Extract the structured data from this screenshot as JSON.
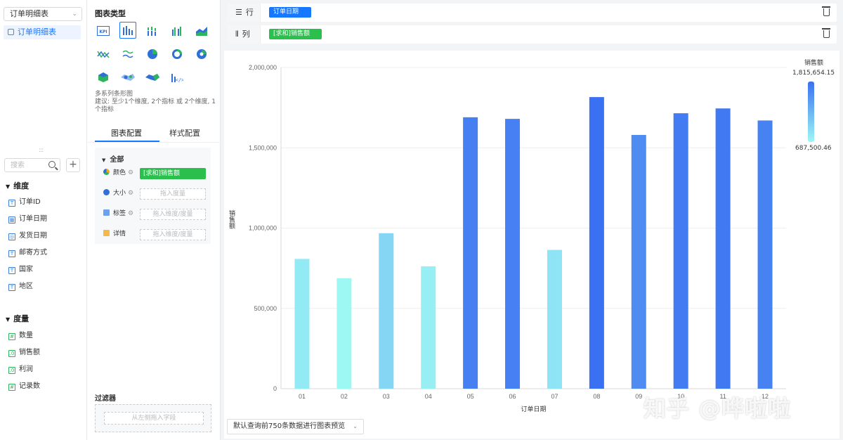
{
  "left": {
    "datasource": "订单明细表",
    "table_item": "订单明细表",
    "search_placeholder": "搜索",
    "dimensions_title": "维度",
    "dimensions": [
      "订单ID",
      "订单日期",
      "发货日期",
      "邮寄方式",
      "国家",
      "地区"
    ],
    "measures_title": "度量",
    "measures": [
      "数量",
      "销售额",
      "利润",
      "记录数"
    ]
  },
  "mid": {
    "title": "图表类型",
    "desc_line1": "多系列条形图",
    "desc_line2": "建议: 至少1个维度, 2个指标 或 2个维度, 1个指标",
    "tab_config": "图表配置",
    "tab_style": "样式配置",
    "all_label": "全部",
    "color_label": "颜色",
    "color_field": "[求和]销售额",
    "size_label": "大小",
    "size_slot": "拖入度量",
    "tag_label": "标签",
    "tag_slot": "拖入维度/度量",
    "detail_label": "详情",
    "detail_slot": "拖入维度/度量",
    "filter_title": "过滤器",
    "filter_slot": "从左侧拖入字段"
  },
  "shelves": {
    "row_label": "行",
    "row_field": "订单日期",
    "col_label": "列",
    "col_field": "[求和]销售额"
  },
  "preview_text": "默认查询前750条数据进行图表预览",
  "watermark": "知乎 @哗啦啦",
  "colors": {
    "accent": "#1677ff",
    "green": "#2bbf4e",
    "bar_high": "#3a70f2",
    "bar_low": "#9df8f4"
  },
  "chart_data": {
    "type": "bar",
    "categories": [
      "01",
      "02",
      "03",
      "04",
      "05",
      "06",
      "07",
      "08",
      "09",
      "10",
      "11",
      "12"
    ],
    "values": [
      808000,
      688000,
      968000,
      762000,
      1690000,
      1680000,
      864000,
      1815654,
      1580000,
      1715000,
      1745000,
      1670000
    ],
    "xlabel": "订单日期",
    "ylabel": "销售额",
    "ylim": [
      0,
      2000000
    ],
    "yticks": [
      "0",
      "500,000",
      "1,000,000",
      "1,500,000",
      "2,000,000"
    ],
    "legend": {
      "title": "销售额",
      "max": "1,815,654.15",
      "min": "687,500.46",
      "position": "top-right"
    }
  }
}
